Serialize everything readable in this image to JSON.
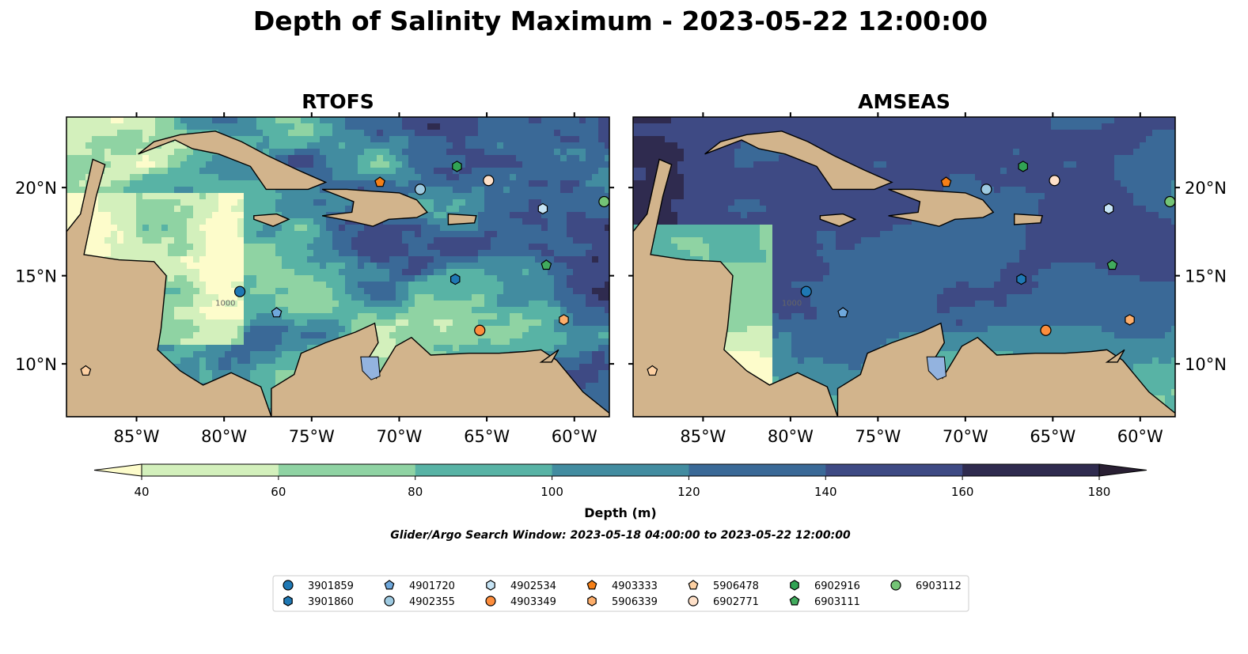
{
  "figure": {
    "title": "Depth of Salinity Maximum - 2023-05-22 12:00:00",
    "search_window": "Glider/Argo Search Window: 2023-05-18 04:00:00 to 2023-05-22 12:00:00"
  },
  "chart_data": [
    {
      "type": "heatmap",
      "panel": "left",
      "title": "RTOFS",
      "lon_range": [
        -89,
        -58
      ],
      "lat_range": [
        7,
        24
      ],
      "x_ticks": [
        "85°W",
        "80°W",
        "75°W",
        "70°W",
        "65°W",
        "60°W"
      ],
      "x_tick_values": [
        -85,
        -80,
        -75,
        -70,
        -65,
        -60
      ],
      "y_ticks": [
        "10°N",
        "15°N",
        "20°N"
      ],
      "y_tick_values": [
        10,
        15,
        20
      ],
      "y_tick_side": "left",
      "contour_label": "1000",
      "colors": {
        "land": "#d2b48c",
        "lake": "#9fb8d6"
      }
    },
    {
      "type": "heatmap",
      "panel": "right",
      "title": "AMSEAS",
      "lon_range": [
        -89,
        -58
      ],
      "lat_range": [
        7,
        24
      ],
      "x_ticks": [
        "85°W",
        "80°W",
        "75°W",
        "70°W",
        "65°W",
        "60°W"
      ],
      "x_tick_values": [
        -85,
        -80,
        -75,
        -70,
        -65,
        -60
      ],
      "y_ticks": [
        "10°N",
        "15°N",
        "20°N"
      ],
      "y_tick_values": [
        10,
        15,
        20
      ],
      "y_tick_side": "right",
      "contour_label": "1000",
      "colors": {
        "land": "#d2b48c",
        "masked_ocean": "#93b3df"
      }
    }
  ],
  "colorbar": {
    "label": "Depth (m)",
    "ticks": [
      "40",
      "60",
      "80",
      "100",
      "120",
      "140",
      "160",
      "180"
    ],
    "tick_values": [
      40,
      60,
      80,
      100,
      120,
      140,
      160,
      180
    ],
    "extend": "both",
    "colors": [
      "#d3f0bc",
      "#8fd3a3",
      "#58b3a5",
      "#428ca0",
      "#3a6997",
      "#3e4a84",
      "#2f2b4f"
    ],
    "under_color": "#fdfccb",
    "over_color": "#291f33"
  },
  "floats": [
    {
      "id": "3901859",
      "marker": "circle",
      "color": "#1f78b4",
      "lon": -79.1,
      "lat": 14.1
    },
    {
      "id": "3901860",
      "marker": "hexagon",
      "color": "#1f78b4",
      "lon": -66.8,
      "lat": 14.8
    },
    {
      "id": "4901720",
      "marker": "pentagon",
      "color": "#6fa8dc",
      "lon": -77.0,
      "lat": 12.9
    },
    {
      "id": "4902355",
      "marker": "circle",
      "color": "#9ecae1",
      "lon": -68.8,
      "lat": 19.9
    },
    {
      "id": "4902534",
      "marker": "hexagon",
      "color": "#c6e4f5",
      "lon": -61.8,
      "lat": 18.8
    },
    {
      "id": "4903349",
      "marker": "circle",
      "color": "#fd8d3c",
      "lon": -65.4,
      "lat": 11.9
    },
    {
      "id": "4903333",
      "marker": "pentagon",
      "color": "#f57f17",
      "lon": -71.1,
      "lat": 20.3
    },
    {
      "id": "5906339",
      "marker": "hexagon",
      "color": "#fdae6b",
      "lon": -60.6,
      "lat": 12.5
    },
    {
      "id": "5906478",
      "marker": "pentagon",
      "color": "#fdd0a2",
      "lon": -87.9,
      "lat": 9.6
    },
    {
      "id": "6902771",
      "marker": "circle",
      "color": "#fee0c8",
      "lon": -64.9,
      "lat": 20.4
    },
    {
      "id": "6902916",
      "marker": "hexagon",
      "color": "#31a354",
      "lon": -66.7,
      "lat": 21.2
    },
    {
      "id": "6903111",
      "marker": "pentagon",
      "color": "#41ab5d",
      "lon": -61.6,
      "lat": 15.6
    },
    {
      "id": "6903112",
      "marker": "circle",
      "color": "#74c476",
      "lon": -58.3,
      "lat": 19.2
    }
  ]
}
